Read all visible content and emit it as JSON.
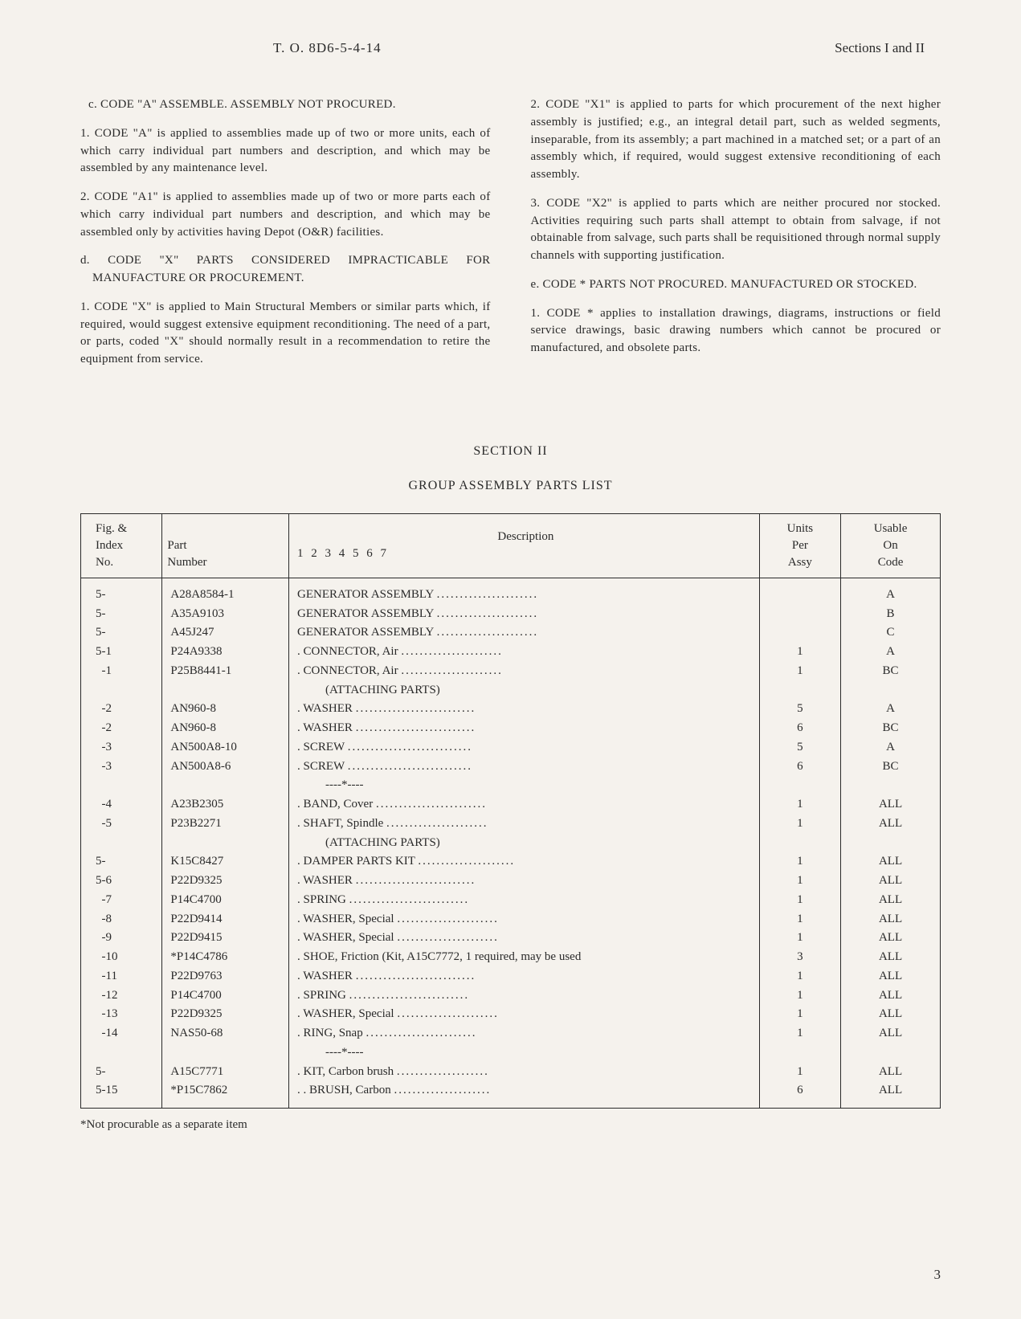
{
  "header": {
    "center": "T. O. 8D6-5-4-14",
    "right": "Sections I and II"
  },
  "left_column": {
    "c_heading": "c. CODE \"A\" ASSEMBLE. ASSEMBLY NOT PROCURED.",
    "c_p1": "1. CODE \"A\" is applied to assemblies made up of two or more units, each of which carry individual part numbers and description, and which may be assembled by any maintenance level.",
    "c_p2": "2. CODE \"A1\" is applied to assemblies made up of two or more parts each of which carry individual part numbers and description, and which may be assembled only by activities having Depot (O&R) facilities.",
    "d_heading": "d. CODE \"X\" PARTS CONSIDERED IMPRACTICABLE FOR MANUFACTURE OR PROCUREMENT.",
    "d_p1": "1. CODE \"X\" is applied to Main Structural Members or similar parts which, if required, would suggest extensive equipment reconditioning. The need of a part, or parts, coded \"X\" should normally result in a recommendation to retire the equipment from service."
  },
  "right_column": {
    "p2": "2. CODE \"X1\" is applied to parts for which procurement of the next higher assembly is justified; e.g., an integral detail part, such as welded segments, inseparable, from its assembly; a part machined in a matched set; or a part of an assembly which, if required, would suggest extensive reconditioning of each assembly.",
    "p3": "3. CODE \"X2\" is applied to parts which are neither procured nor stocked. Activities requiring such parts shall attempt to obtain from salvage, if not obtainable from salvage, such parts shall be requisitioned through normal supply channels with supporting justification.",
    "e_heading": "e. CODE * PARTS NOT PROCURED. MANUFACTURED OR STOCKED.",
    "e_p1": "1. CODE * applies to installation drawings, diagrams, instructions or field service drawings, basic drawing numbers which cannot be procured or manufactured, and obsolete parts."
  },
  "section2": {
    "title": "SECTION II",
    "subtitle": "GROUP ASSEMBLY PARTS LIST"
  },
  "table": {
    "headers": {
      "fig": "Fig. & Index No.",
      "part": "Part Number",
      "desc_label": "Description",
      "desc_nums": "1 2 3 4 5 6 7",
      "units": "Units Per Assy",
      "code": "Usable On Code"
    },
    "rows": [
      {
        "fig": "5-",
        "part": "A28A8584-1",
        "desc": "GENERATOR ASSEMBLY",
        "dots": true,
        "indent": 0,
        "units": "",
        "code": "A"
      },
      {
        "fig": "5-",
        "part": "A35A9103",
        "desc": "GENERATOR ASSEMBLY",
        "dots": true,
        "indent": 0,
        "units": "",
        "code": "B"
      },
      {
        "fig": "5-",
        "part": "A45J247",
        "desc": "GENERATOR ASSEMBLY",
        "dots": true,
        "indent": 0,
        "units": "",
        "code": "C"
      },
      {
        "fig": "5-1",
        "part": "P24A9338",
        "desc": "CONNECTOR, Air",
        "dots": true,
        "indent": 1,
        "units": "1",
        "code": "A"
      },
      {
        "fig": "  -1",
        "part": "P25B8441-1",
        "desc": "CONNECTOR, Air",
        "dots": true,
        "indent": 1,
        "units": "1",
        "code": "BC"
      },
      {
        "fig": "",
        "part": "",
        "desc": "(ATTACHING PARTS)",
        "dots": false,
        "indent": 0,
        "sub": true,
        "units": "",
        "code": ""
      },
      {
        "fig": "  -2",
        "part": "AN960-8",
        "desc": "WASHER",
        "dots": true,
        "indent": 1,
        "units": "5",
        "code": "A"
      },
      {
        "fig": "  -2",
        "part": "AN960-8",
        "desc": "WASHER",
        "dots": true,
        "indent": 1,
        "units": "6",
        "code": "BC"
      },
      {
        "fig": "  -3",
        "part": "AN500A8-10",
        "desc": "SCREW",
        "dots": true,
        "indent": 1,
        "units": "5",
        "code": "A"
      },
      {
        "fig": "  -3",
        "part": "AN500A8-6",
        "desc": "SCREW",
        "dots": true,
        "indent": 1,
        "units": "6",
        "code": "BC"
      },
      {
        "fig": "",
        "part": "",
        "desc": "----*----",
        "dots": false,
        "indent": 0,
        "sub": true,
        "units": "",
        "code": ""
      },
      {
        "fig": "  -4",
        "part": "A23B2305",
        "desc": "BAND, Cover",
        "dots": true,
        "indent": 1,
        "units": "1",
        "code": "ALL"
      },
      {
        "fig": "  -5",
        "part": "P23B2271",
        "desc": "SHAFT, Spindle",
        "dots": true,
        "indent": 1,
        "units": "1",
        "code": "ALL"
      },
      {
        "fig": "",
        "part": "",
        "desc": "(ATTACHING PARTS)",
        "dots": false,
        "indent": 0,
        "sub": true,
        "units": "",
        "code": ""
      },
      {
        "fig": "5-",
        "part": "K15C8427",
        "desc": "DAMPER PARTS KIT",
        "dots": true,
        "indent": 1,
        "units": "1",
        "code": "ALL"
      },
      {
        "fig": "5-6",
        "part": "P22D9325",
        "desc": "WASHER",
        "dots": true,
        "indent": 1,
        "units": "1",
        "code": "ALL"
      },
      {
        "fig": "  -7",
        "part": "P14C4700",
        "desc": "SPRING",
        "dots": true,
        "indent": 1,
        "units": "1",
        "code": "ALL"
      },
      {
        "fig": "  -8",
        "part": "P22D9414",
        "desc": "WASHER, Special",
        "dots": true,
        "indent": 1,
        "units": "1",
        "code": "ALL"
      },
      {
        "fig": "  -9",
        "part": "P22D9415",
        "desc": "WASHER, Special",
        "dots": true,
        "indent": 1,
        "units": "1",
        "code": "ALL"
      },
      {
        "fig": "  -10",
        "part": "*P14C4786",
        "desc": "SHOE, Friction (Kit, A15C7772, 1 required, may be used",
        "dots": false,
        "indent": 1,
        "units": "3",
        "code": "ALL"
      },
      {
        "fig": "  -11",
        "part": "P22D9763",
        "desc": "WASHER",
        "dots": true,
        "indent": 1,
        "units": "1",
        "code": "ALL"
      },
      {
        "fig": "  -12",
        "part": "P14C4700",
        "desc": "SPRING",
        "dots": true,
        "indent": 1,
        "units": "1",
        "code": "ALL"
      },
      {
        "fig": "  -13",
        "part": "P22D9325",
        "desc": "WASHER, Special",
        "dots": true,
        "indent": 1,
        "units": "1",
        "code": "ALL"
      },
      {
        "fig": "  -14",
        "part": "NAS50-68",
        "desc": "RING, Snap",
        "dots": true,
        "indent": 1,
        "units": "1",
        "code": "ALL"
      },
      {
        "fig": "",
        "part": "",
        "desc": "----*----",
        "dots": false,
        "indent": 0,
        "sub": true,
        "units": "",
        "code": ""
      },
      {
        "fig": "5-",
        "part": "A15C7771",
        "desc": "KIT, Carbon brush",
        "dots": true,
        "indent": 1,
        "units": "1",
        "code": "ALL"
      },
      {
        "fig": "5-15",
        "part": "*P15C7862",
        "desc": "BRUSH, Carbon",
        "dots": true,
        "indent": 2,
        "units": "6",
        "code": "ALL"
      }
    ]
  },
  "footnote": "*Not procurable as a separate item",
  "page_number": "3"
}
